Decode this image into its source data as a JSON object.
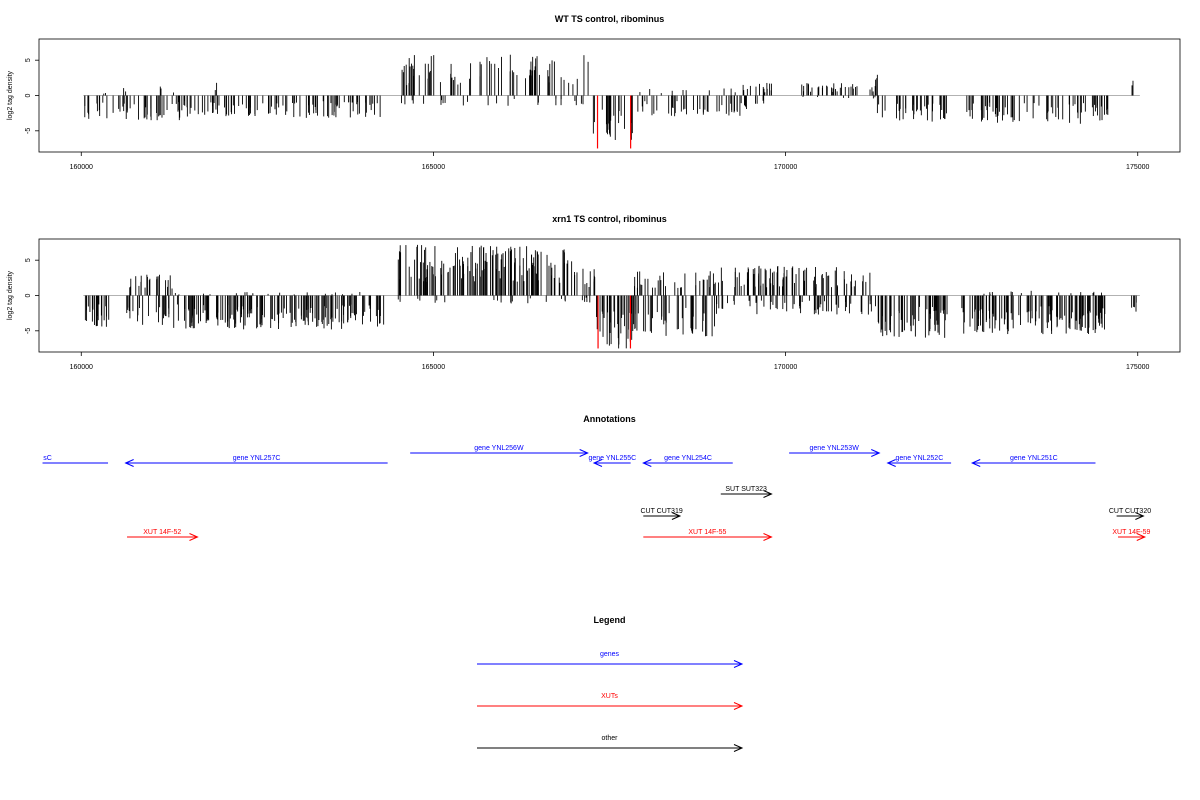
{
  "chart_data": [
    {
      "type": "bar",
      "title": "WT TS control, ribominus",
      "ylabel": "log2 tag density",
      "xlabel": "",
      "xlim": [
        159400,
        175600
      ],
      "ylim": [
        -8,
        8
      ],
      "xticks": [
        160000,
        165000,
        170000,
        175000
      ],
      "yticks": [
        -5,
        0,
        5
      ],
      "grid": false,
      "series": [
        {
          "color": "#000000",
          "segments": [
            {
              "start": 160050,
              "end": 161450,
              "min": -3.5,
              "max": 0.5
            },
            {
              "start": 160600,
              "end": 160650,
              "min": 0,
              "max": 1.4
            },
            {
              "start": 161100,
              "end": 161150,
              "min": 0,
              "max": 3.0
            },
            {
              "start": 161450,
              "end": 162300,
              "min": -3.0,
              "max": 0
            },
            {
              "start": 161900,
              "end": 161950,
              "min": 0,
              "max": 2.0
            },
            {
              "start": 162300,
              "end": 164300,
              "min": -3.2,
              "max": 0
            },
            {
              "start": 164500,
              "end": 167200,
              "min": -1.5,
              "max": 5.8
            },
            {
              "start": 167200,
              "end": 167850,
              "min": -6.5,
              "max": 0
            },
            {
              "start": 167900,
              "end": 169500,
              "min": -3.0,
              "max": 1.0
            },
            {
              "start": 169300,
              "end": 169900,
              "min": -1.5,
              "max": 1.8
            },
            {
              "start": 170200,
              "end": 171300,
              "min": -0.5,
              "max": 1.8
            },
            {
              "start": 171250,
              "end": 171320,
              "min": 0,
              "max": 3.0
            },
            {
              "start": 171300,
              "end": 172300,
              "min": -3.8,
              "max": 0
            },
            {
              "start": 172500,
              "end": 174600,
              "min": -4.0,
              "max": 0
            },
            {
              "start": 174900,
              "end": 174960,
              "min": 0,
              "max": 2.4
            }
          ]
        },
        {
          "color": "#ff0000",
          "segments": [
            {
              "start": 167320,
              "end": 167340,
              "min": -7.5,
              "max": 0
            },
            {
              "start": 167790,
              "end": 167810,
              "min": -7.5,
              "max": 0
            }
          ]
        }
      ]
    },
    {
      "type": "bar",
      "title": "xrn1 TS control, ribominus",
      "ylabel": "log2 tag density",
      "xlabel": "",
      "xlim": [
        159400,
        175600
      ],
      "ylim": [
        -8,
        8
      ],
      "xticks": [
        160000,
        165000,
        170000,
        175000
      ],
      "yticks": [
        -5,
        0,
        5
      ],
      "grid": false,
      "series": [
        {
          "color": "#000000",
          "segments": [
            {
              "start": 160050,
              "end": 160400,
              "min": -4.5,
              "max": 0
            },
            {
              "start": 160600,
              "end": 161300,
              "min": -4.5,
              "max": 3.0
            },
            {
              "start": 161300,
              "end": 164300,
              "min": -4.8,
              "max": 0.5
            },
            {
              "start": 164500,
              "end": 167000,
              "min": -1.2,
              "max": 7.2
            },
            {
              "start": 167000,
              "end": 167300,
              "min": -1.0,
              "max": 3.8
            },
            {
              "start": 167300,
              "end": 167850,
              "min": -7.5,
              "max": 0
            },
            {
              "start": 167850,
              "end": 169000,
              "min": -6.0,
              "max": 3.5
            },
            {
              "start": 169000,
              "end": 171300,
              "min": -2.8,
              "max": 4.2
            },
            {
              "start": 171300,
              "end": 172300,
              "min": -6.0,
              "max": 0
            },
            {
              "start": 172500,
              "end": 174600,
              "min": -5.5,
              "max": 0.8
            },
            {
              "start": 174900,
              "end": 174980,
              "min": -3.0,
              "max": 0
            }
          ]
        },
        {
          "color": "#ff0000",
          "segments": [
            {
              "start": 167330,
              "end": 167345,
              "min": -7.5,
              "max": 0
            },
            {
              "start": 167790,
              "end": 167805,
              "min": -7.5,
              "max": 0
            }
          ]
        }
      ]
    }
  ],
  "annotations": {
    "title": "Annotations",
    "features": [
      {
        "label": "sC",
        "color": "#0000ff",
        "start": 159450,
        "end": 160380,
        "strand": "none",
        "row": 1
      },
      {
        "label": "gene YNL257C",
        "color": "#0000ff",
        "start": 160630,
        "end": 164350,
        "strand": "-",
        "row": 1
      },
      {
        "label": "gene YNL256W",
        "color": "#0000ff",
        "start": 164670,
        "end": 167190,
        "strand": "+",
        "row": 0
      },
      {
        "label": "gene YNL255C",
        "color": "#0000ff",
        "start": 167280,
        "end": 167800,
        "strand": "-",
        "row": 1
      },
      {
        "label": "gene YNL254C",
        "color": "#0000ff",
        "start": 167980,
        "end": 169250,
        "strand": "-",
        "row": 1
      },
      {
        "label": "gene YNL253W",
        "color": "#0000ff",
        "start": 170050,
        "end": 171330,
        "strand": "+",
        "row": 0
      },
      {
        "label": "gene YNL252C",
        "color": "#0000ff",
        "start": 171450,
        "end": 172350,
        "strand": "-",
        "row": 1
      },
      {
        "label": "gene YNL251C",
        "color": "#0000ff",
        "start": 172650,
        "end": 174400,
        "strand": "-",
        "row": 1
      },
      {
        "label": "SUT SUT323",
        "color": "#000000",
        "start": 169080,
        "end": 169800,
        "strand": "+",
        "row": 2
      },
      {
        "label": "CUT CUT319",
        "color": "#000000",
        "start": 167980,
        "end": 168500,
        "strand": "+",
        "row": 3
      },
      {
        "label": "CUT CUT320",
        "color": "#000000",
        "start": 174700,
        "end": 175080,
        "strand": "+",
        "row": 3
      },
      {
        "label": "XUT 14F-52",
        "color": "#ff0000",
        "start": 160650,
        "end": 161650,
        "strand": "+",
        "row": 4
      },
      {
        "label": "XUT 14F-55",
        "color": "#ff0000",
        "start": 167980,
        "end": 169800,
        "strand": "+",
        "row": 4
      },
      {
        "label": "XUT 14F-59",
        "color": "#ff0000",
        "start": 174720,
        "end": 175100,
        "strand": "+",
        "row": 4
      }
    ]
  },
  "legend": {
    "title": "Legend",
    "items": [
      {
        "label": "genes",
        "color": "#0000ff"
      },
      {
        "label": "XUTs",
        "color": "#ff0000"
      },
      {
        "label": "other",
        "color": "#000000"
      }
    ]
  }
}
